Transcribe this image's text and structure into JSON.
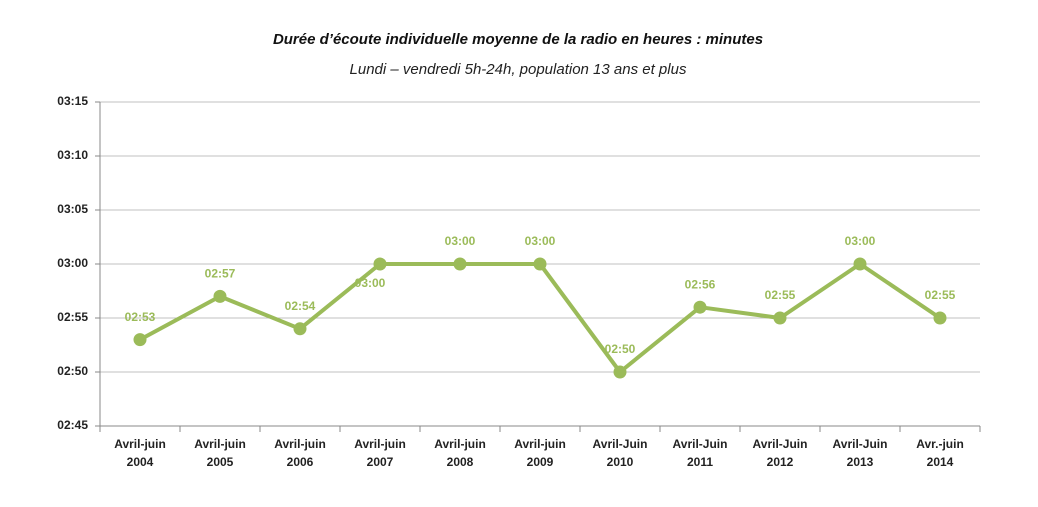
{
  "chart_data": {
    "type": "line",
    "title": "Durée d’écoute individuelle moyenne de la radio en heures : minutes",
    "subtitle": "Lundi – vendredi 5h-24h, population 13 ans et plus",
    "categories": [
      "Avril-juin 2004",
      "Avril-juin 2005",
      "Avril-juin 2006",
      "Avril-juin 2007",
      "Avril-juin 2008",
      "Avril-juin 2009",
      "Avril-Juin 2010",
      "Avril-Juin 2011",
      "Avril-Juin 2012",
      "Avril-Juin 2013",
      "Avr.-juin 2014"
    ],
    "series": [
      {
        "name": "Durée d’écoute",
        "color": "#9bbb59",
        "values": [
          173,
          177,
          174,
          180,
          180,
          180,
          170,
          176,
          175,
          180,
          175
        ],
        "value_labels": [
          "02:53",
          "02:57",
          "02:54",
          "03:00",
          "03:00",
          "03:00",
          "02:50",
          "02:56",
          "02:55",
          "03:00",
          "02:55"
        ]
      }
    ],
    "ylim": [
      165,
      195
    ],
    "yticks": [
      {
        "value": 165,
        "label": "02:45"
      },
      {
        "value": 170,
        "label": "02:50"
      },
      {
        "value": 175,
        "label": "02:55"
      },
      {
        "value": 180,
        "label": "03:00"
      },
      {
        "value": 185,
        "label": "03:05"
      },
      {
        "value": 190,
        "label": "03:10"
      },
      {
        "value": 195,
        "label": "03:15"
      }
    ],
    "grid": true
  }
}
